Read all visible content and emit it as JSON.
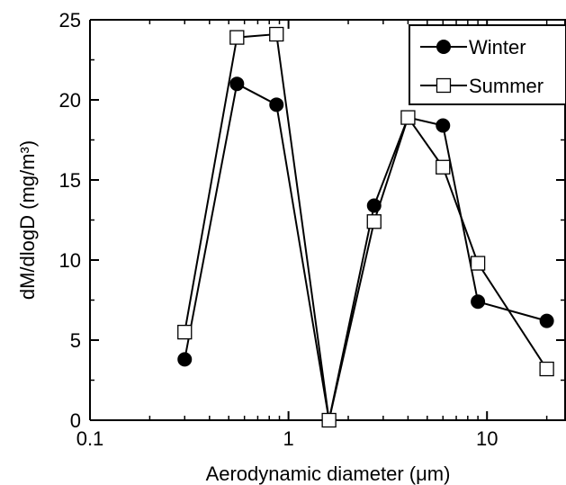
{
  "chart_data": {
    "type": "line",
    "xlabel": "Aerodynamic diameter (μm)",
    "ylabel": "dM/dlogD (mg/m³)",
    "xscale": "log",
    "xlim": [
      0.1,
      25
    ],
    "ylim": [
      0,
      25
    ],
    "xticks": [
      0.1,
      1,
      10
    ],
    "xtick_labels": [
      "0.1",
      "1",
      "10"
    ],
    "yticks": [
      0,
      5,
      10,
      15,
      20,
      25
    ],
    "ytick_labels": [
      "0",
      "5",
      "10",
      "15",
      "20",
      "25"
    ],
    "grid": false,
    "legend_position": "top-right",
    "series": [
      {
        "name": "Winter",
        "marker": "filled-circle",
        "x": [
          0.3,
          0.55,
          0.87,
          1.6,
          2.7,
          4.0,
          6.0,
          9.0,
          20.0
        ],
        "y": [
          3.8,
          21.0,
          19.7,
          0.0,
          13.4,
          18.9,
          18.4,
          7.4,
          6.2
        ]
      },
      {
        "name": "Summer",
        "marker": "open-square",
        "x": [
          0.3,
          0.55,
          0.87,
          1.6,
          2.7,
          4.0,
          6.0,
          9.0,
          20.0
        ],
        "y": [
          5.5,
          23.9,
          24.1,
          0.0,
          12.4,
          18.9,
          15.8,
          9.8,
          3.2
        ]
      }
    ]
  }
}
